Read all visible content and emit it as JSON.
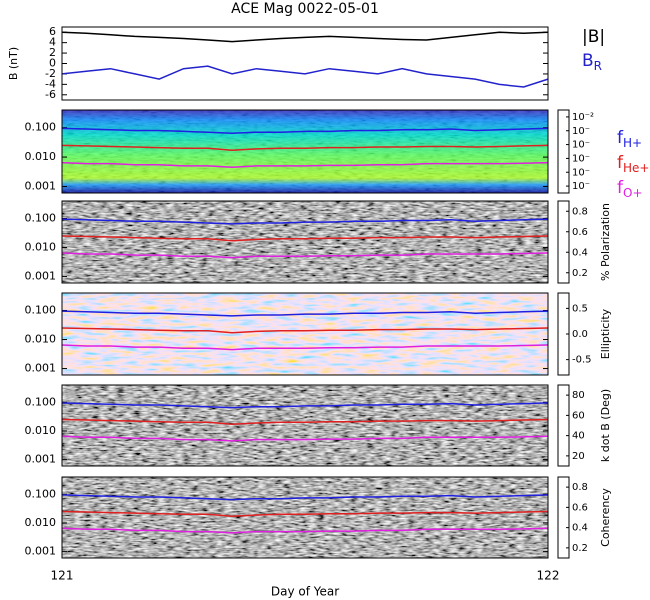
{
  "chart_data": [
    {
      "type": "line",
      "title": "ACE Mag 0022-05-01",
      "ylabel": "B (nT)",
      "x": [
        121,
        121.05,
        121.1,
        121.15,
        121.2,
        121.25,
        121.3,
        121.35,
        121.4,
        121.45,
        121.5,
        121.55,
        121.6,
        121.65,
        121.7,
        121.75,
        121.8,
        121.85,
        121.9,
        121.95,
        122
      ],
      "xlim": [
        121,
        122
      ],
      "ylim": [
        -7,
        7
      ],
      "yticks": [
        6,
        4,
        2,
        0,
        -2,
        -4,
        -6
      ],
      "series": [
        {
          "name": "|B|",
          "color": "#000000",
          "values": [
            6,
            5.8,
            5.5,
            5.2,
            5,
            4.8,
            4.5,
            4.2,
            4.5,
            4.8,
            5,
            5.2,
            5,
            4.8,
            4.6,
            4.5,
            5,
            5.5,
            6,
            5.8,
            6
          ]
        },
        {
          "name": "B",
          "subscript": "R",
          "color": "#2222cc",
          "values": [
            -2,
            -1.5,
            -1,
            -2,
            -3,
            -1,
            -0.5,
            -2,
            -1,
            -1.5,
            -2,
            -1,
            -1.5,
            -2,
            -1,
            -2,
            -2.5,
            -3,
            -4,
            -4.5,
            -3
          ]
        }
      ]
    },
    {
      "type": "line",
      "log": true,
      "x": [
        121,
        121.05,
        121.1,
        121.15,
        121.2,
        121.25,
        121.3,
        121.35,
        121.4,
        121.45,
        121.5,
        121.55,
        121.6,
        121.65,
        121.7,
        121.75,
        121.8,
        121.85,
        121.9,
        121.95,
        122
      ],
      "xlim": [
        121,
        122
      ],
      "ylim": [
        0.0006,
        0.4
      ],
      "yticks": [
        {
          "value": 0.001,
          "label": "0.001"
        },
        {
          "value": 0.01,
          "label": "0.010"
        },
        {
          "value": 0.1,
          "label": "0.100"
        }
      ],
      "colorbar": {
        "lim": [
          -7.5,
          -1.5
        ],
        "ticks": [
          {
            "value": -2,
            "label": "10⁻²"
          },
          {
            "value": -3,
            "label": "10⁻"
          },
          {
            "value": -4,
            "label": "10⁻"
          },
          {
            "value": -5,
            "label": "10⁻"
          },
          {
            "value": -6,
            "label": "10⁻"
          },
          {
            "value": -7,
            "label": "10⁻"
          }
        ]
      },
      "series": [
        {
          "name": "f",
          "subscript": "H+",
          "color": "#2020e0",
          "values": [
            0.095,
            0.09,
            0.085,
            0.08,
            0.08,
            0.075,
            0.07,
            0.065,
            0.07,
            0.07,
            0.075,
            0.075,
            0.08,
            0.08,
            0.085,
            0.085,
            0.09,
            0.08,
            0.085,
            0.09,
            0.095
          ]
        },
        {
          "name": "f",
          "subscript": "He+",
          "color": "#e02020",
          "values": [
            0.025,
            0.024,
            0.023,
            0.022,
            0.021,
            0.02,
            0.02,
            0.017,
            0.019,
            0.02,
            0.02,
            0.021,
            0.021,
            0.022,
            0.022,
            0.023,
            0.023,
            0.022,
            0.023,
            0.024,
            0.025
          ]
        },
        {
          "name": "f",
          "subscript": "O+",
          "color": "#e020e0",
          "values": [
            0.0065,
            0.006,
            0.006,
            0.0055,
            0.0055,
            0.005,
            0.005,
            0.0045,
            0.005,
            0.005,
            0.005,
            0.0052,
            0.0052,
            0.0055,
            0.0055,
            0.006,
            0.006,
            0.006,
            0.006,
            0.0062,
            0.0065
          ]
        }
      ]
    },
    {
      "type": "line",
      "log": true,
      "x": [
        121,
        121.05,
        121.1,
        121.15,
        121.2,
        121.25,
        121.3,
        121.35,
        121.4,
        121.45,
        121.5,
        121.55,
        121.6,
        121.65,
        121.7,
        121.75,
        121.8,
        121.85,
        121.9,
        121.95,
        122
      ],
      "xlim": [
        121,
        122
      ],
      "ylim": [
        0.0006,
        0.4
      ],
      "yticks": [
        {
          "value": 0.001,
          "label": "0.001"
        },
        {
          "value": 0.01,
          "label": "0.010"
        },
        {
          "value": 0.1,
          "label": "0.100"
        }
      ],
      "colorbar": {
        "label": "% Polarization",
        "lim": [
          0.1,
          0.9
        ],
        "ticks": [
          0.8,
          0.6,
          0.4,
          0.2
        ]
      },
      "series": [
        {
          "color": "#2020e0",
          "values": [
            0.095,
            0.09,
            0.085,
            0.08,
            0.08,
            0.075,
            0.07,
            0.065,
            0.07,
            0.07,
            0.075,
            0.075,
            0.08,
            0.08,
            0.085,
            0.085,
            0.09,
            0.08,
            0.085,
            0.09,
            0.095
          ]
        },
        {
          "color": "#e02020",
          "values": [
            0.025,
            0.024,
            0.023,
            0.022,
            0.021,
            0.02,
            0.02,
            0.017,
            0.019,
            0.02,
            0.02,
            0.021,
            0.021,
            0.022,
            0.022,
            0.023,
            0.023,
            0.022,
            0.023,
            0.024,
            0.025
          ]
        },
        {
          "color": "#e020e0",
          "values": [
            0.0065,
            0.006,
            0.006,
            0.0055,
            0.0055,
            0.005,
            0.005,
            0.0045,
            0.005,
            0.005,
            0.005,
            0.0052,
            0.0052,
            0.0055,
            0.0055,
            0.006,
            0.006,
            0.006,
            0.006,
            0.0062,
            0.0065
          ]
        }
      ]
    },
    {
      "type": "line",
      "log": true,
      "x": [
        121,
        121.05,
        121.1,
        121.15,
        121.2,
        121.25,
        121.3,
        121.35,
        121.4,
        121.45,
        121.5,
        121.55,
        121.6,
        121.65,
        121.7,
        121.75,
        121.8,
        121.85,
        121.9,
        121.95,
        122
      ],
      "xlim": [
        121,
        122
      ],
      "ylim": [
        0.0006,
        0.4
      ],
      "yticks": [
        {
          "value": 0.001,
          "label": "0.001"
        },
        {
          "value": 0.01,
          "label": "0.010"
        },
        {
          "value": 0.1,
          "label": "0.100"
        }
      ],
      "colorbar": {
        "label": "Ellipticity",
        "lim": [
          -0.8,
          0.8
        ],
        "ticks": [
          0.5,
          {
            "value": 0,
            "label": "0.0"
          },
          -0.5
        ]
      },
      "series": [
        {
          "color": "#2020e0",
          "values": [
            0.095,
            0.09,
            0.085,
            0.08,
            0.08,
            0.075,
            0.07,
            0.065,
            0.07,
            0.07,
            0.075,
            0.075,
            0.08,
            0.08,
            0.085,
            0.085,
            0.09,
            0.08,
            0.085,
            0.09,
            0.095
          ]
        },
        {
          "color": "#e02020",
          "values": [
            0.025,
            0.024,
            0.023,
            0.022,
            0.021,
            0.02,
            0.02,
            0.017,
            0.019,
            0.02,
            0.02,
            0.021,
            0.021,
            0.022,
            0.022,
            0.023,
            0.023,
            0.022,
            0.023,
            0.024,
            0.025
          ]
        },
        {
          "color": "#e020e0",
          "values": [
            0.0065,
            0.006,
            0.006,
            0.0055,
            0.0055,
            0.005,
            0.005,
            0.0045,
            0.005,
            0.005,
            0.005,
            0.0052,
            0.0052,
            0.0055,
            0.0055,
            0.006,
            0.006,
            0.006,
            0.006,
            0.0062,
            0.0065
          ]
        }
      ]
    },
    {
      "type": "line",
      "log": true,
      "x": [
        121,
        121.05,
        121.1,
        121.15,
        121.2,
        121.25,
        121.3,
        121.35,
        121.4,
        121.45,
        121.5,
        121.55,
        121.6,
        121.65,
        121.7,
        121.75,
        121.8,
        121.85,
        121.9,
        121.95,
        122
      ],
      "xlim": [
        121,
        122
      ],
      "ylim": [
        0.0006,
        0.4
      ],
      "yticks": [
        {
          "value": 0.001,
          "label": "0.001"
        },
        {
          "value": 0.01,
          "label": "0.010"
        },
        {
          "value": 0.1,
          "label": "0.100"
        }
      ],
      "colorbar": {
        "label": "k dot B (Deg)",
        "lim": [
          10,
          90
        ],
        "ticks": [
          80,
          60,
          40,
          20
        ]
      },
      "series": [
        {
          "color": "#2020e0",
          "values": [
            0.095,
            0.09,
            0.085,
            0.08,
            0.08,
            0.075,
            0.07,
            0.065,
            0.07,
            0.07,
            0.075,
            0.075,
            0.08,
            0.08,
            0.085,
            0.085,
            0.09,
            0.08,
            0.085,
            0.09,
            0.095
          ]
        },
        {
          "color": "#e02020",
          "values": [
            0.025,
            0.024,
            0.023,
            0.022,
            0.021,
            0.02,
            0.02,
            0.017,
            0.019,
            0.02,
            0.02,
            0.021,
            0.021,
            0.022,
            0.022,
            0.023,
            0.023,
            0.022,
            0.023,
            0.024,
            0.025
          ]
        },
        {
          "color": "#e020e0",
          "values": [
            0.0065,
            0.006,
            0.006,
            0.0055,
            0.0055,
            0.005,
            0.005,
            0.0045,
            0.005,
            0.005,
            0.005,
            0.0052,
            0.0052,
            0.0055,
            0.0055,
            0.006,
            0.006,
            0.006,
            0.006,
            0.0062,
            0.0065
          ]
        }
      ]
    },
    {
      "type": "line",
      "log": true,
      "xlabel": "Day of Year",
      "x": [
        121,
        121.05,
        121.1,
        121.15,
        121.2,
        121.25,
        121.3,
        121.35,
        121.4,
        121.45,
        121.5,
        121.55,
        121.6,
        121.65,
        121.7,
        121.75,
        121.8,
        121.85,
        121.9,
        121.95,
        122
      ],
      "xlim": [
        121,
        122
      ],
      "xticks": [
        121,
        122
      ],
      "ylim": [
        0.0006,
        0.4
      ],
      "yticks": [
        {
          "value": 0.001,
          "label": "0.001"
        },
        {
          "value": 0.01,
          "label": "0.010"
        },
        {
          "value": 0.1,
          "label": "0.100"
        }
      ],
      "colorbar": {
        "label": "Coherency",
        "lim": [
          0.1,
          0.9
        ],
        "ticks": [
          0.8,
          0.6,
          0.4,
          0.2
        ]
      },
      "series": [
        {
          "color": "#2020e0",
          "values": [
            0.095,
            0.09,
            0.085,
            0.08,
            0.08,
            0.075,
            0.07,
            0.065,
            0.07,
            0.07,
            0.075,
            0.075,
            0.08,
            0.08,
            0.085,
            0.085,
            0.09,
            0.08,
            0.085,
            0.09,
            0.095
          ]
        },
        {
          "color": "#e02020",
          "values": [
            0.025,
            0.024,
            0.023,
            0.022,
            0.021,
            0.02,
            0.02,
            0.017,
            0.019,
            0.02,
            0.02,
            0.021,
            0.021,
            0.022,
            0.022,
            0.023,
            0.023,
            0.022,
            0.023,
            0.024,
            0.025
          ]
        },
        {
          "color": "#e020e0",
          "values": [
            0.0065,
            0.006,
            0.006,
            0.0055,
            0.0055,
            0.005,
            0.005,
            0.0045,
            0.005,
            0.005,
            0.005,
            0.0052,
            0.0052,
            0.0055,
            0.0055,
            0.006,
            0.006,
            0.006,
            0.006,
            0.0062,
            0.0065
          ]
        }
      ]
    }
  ]
}
